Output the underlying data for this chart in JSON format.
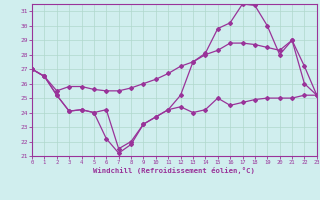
{
  "xlabel": "Windchill (Refroidissement éolien,°C)",
  "background_color": "#d0eeee",
  "grid_color": "#b0d8cc",
  "line_color": "#993399",
  "xlim": [
    0,
    23
  ],
  "ylim": [
    21,
    31.5
  ],
  "yticks": [
    21,
    22,
    23,
    24,
    25,
    26,
    27,
    28,
    29,
    30,
    31
  ],
  "xticks": [
    0,
    1,
    2,
    3,
    4,
    5,
    6,
    7,
    8,
    9,
    10,
    11,
    12,
    13,
    14,
    15,
    16,
    17,
    18,
    19,
    20,
    21,
    22,
    23
  ],
  "line_zigzag": [
    27.0,
    26.5,
    25.2,
    24.1,
    24.2,
    24.0,
    22.2,
    21.2,
    21.8,
    23.2,
    23.7,
    24.2,
    25.2,
    27.5,
    28.1,
    29.8,
    30.2,
    31.5,
    31.4,
    30.0,
    28.0,
    29.0,
    26.0,
    25.2
  ],
  "line_flat": [
    27.0,
    26.5,
    25.2,
    24.1,
    24.2,
    24.0,
    24.2,
    21.5,
    22.0,
    23.2,
    23.7,
    24.2,
    24.4,
    24.0,
    24.2,
    25.0,
    24.5,
    24.7,
    24.9,
    25.0,
    25.0,
    25.0,
    25.2,
    25.2
  ],
  "line_rise": [
    27.0,
    26.5,
    25.5,
    25.8,
    25.8,
    25.6,
    25.5,
    25.5,
    25.7,
    26.0,
    26.3,
    26.7,
    27.2,
    27.5,
    28.0,
    28.3,
    28.8,
    28.8,
    28.7,
    28.5,
    28.3,
    29.0,
    27.2,
    25.2
  ]
}
